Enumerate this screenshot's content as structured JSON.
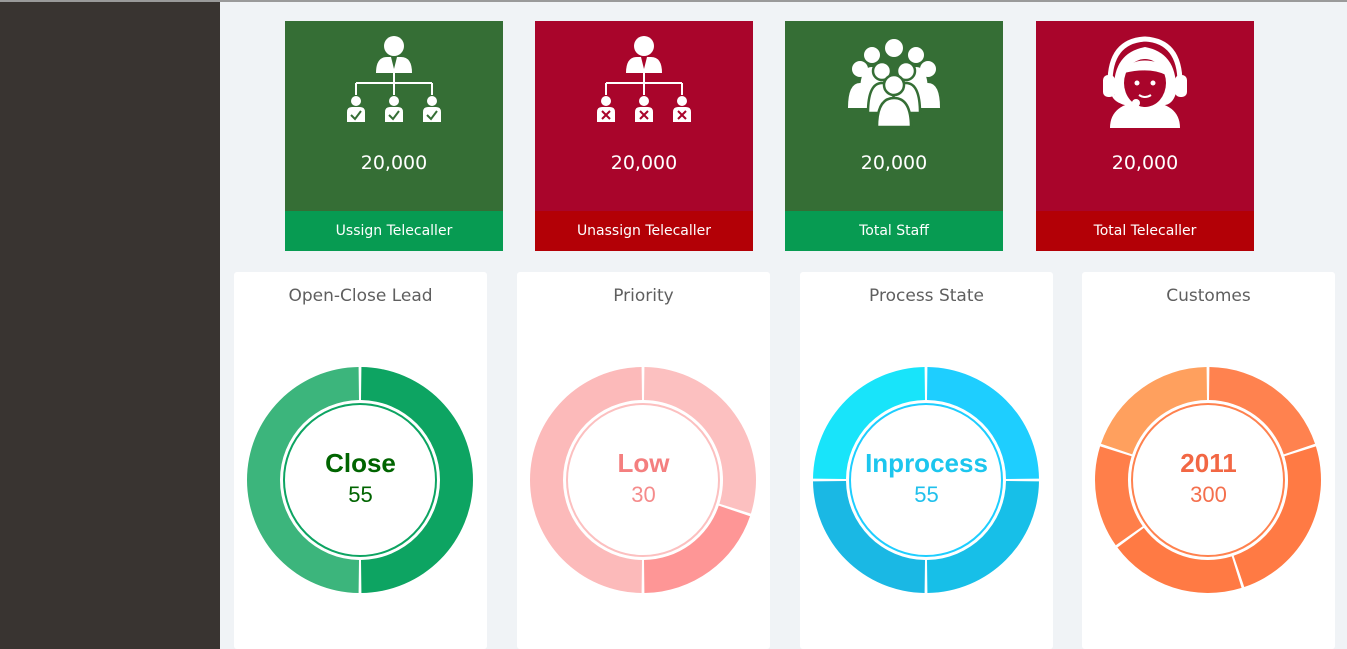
{
  "cards": [
    {
      "value": "20,000",
      "footer": "Ussign Telecaller",
      "icon": "assigned-hierarchy-icon",
      "bg": "#356e35",
      "footer_bg": "#079b52"
    },
    {
      "value": "20,000",
      "footer": "Unassign Telecaller",
      "icon": "unassigned-hierarchy-icon",
      "bg": "#a9052b",
      "footer_bg": "#b30006"
    },
    {
      "value": "20,000",
      "footer": "Total Staff",
      "icon": "group-icon",
      "bg": "#356e35",
      "footer_bg": "#079b52"
    },
    {
      "value": "20,000",
      "footer": "Total Telecaller",
      "icon": "headset-operator-icon",
      "bg": "#a9052b",
      "footer_bg": "#b30006"
    }
  ],
  "donuts": [
    {
      "title": "Open-Close Lead",
      "center_label": "Close",
      "center_value": "55",
      "label_color": "#006400",
      "value_color": "#006400",
      "chart_data": {
        "type": "pie",
        "values": [
          50,
          50
        ],
        "colors": [
          "#0da462",
          "#3cb57c"
        ]
      }
    },
    {
      "title": "Priority",
      "center_label": "Low",
      "center_value": "30",
      "label_color": "#f47f7f",
      "value_color": "#f58b8b",
      "chart_data": {
        "type": "pie",
        "values": [
          30,
          20,
          50
        ],
        "colors": [
          "#fcc0c0",
          "#fe9696",
          "#fcbaba"
        ]
      }
    },
    {
      "title": "Process State",
      "center_label": "Inprocess",
      "center_value": "55",
      "label_color": "#1cc6ee",
      "value_color": "#20c0ec",
      "chart_data": {
        "type": "pie",
        "values": [
          25,
          25,
          25,
          25
        ],
        "colors": [
          "#1eceff",
          "#17bfe8",
          "#1ab8e4",
          "#18e4fa"
        ]
      }
    },
    {
      "title": "Customes",
      "center_label": "2011",
      "center_value": "300",
      "label_color": "#f26744",
      "value_color": "#f46f4d",
      "chart_data": {
        "type": "pie",
        "values": [
          20,
          25,
          20,
          15,
          20
        ],
        "colors": [
          "#ff824f",
          "#ff7a44",
          "#ff7a44",
          "#ff7f4a",
          "#ffa05e"
        ]
      }
    }
  ]
}
